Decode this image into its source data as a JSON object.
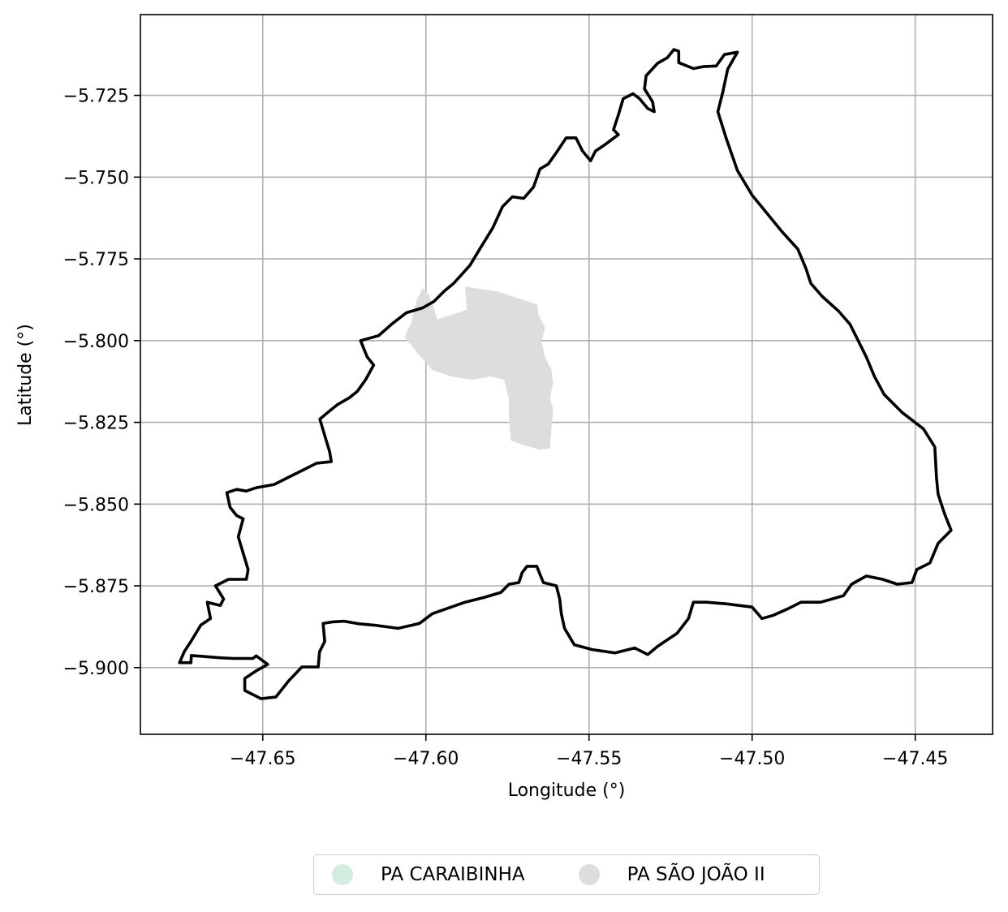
{
  "map": {
    "xlabel": "Longitude (°)",
    "ylabel": "Latitude (°)",
    "xlim": [
      -47.6875,
      -47.4263
    ],
    "ylim": [
      -5.9204,
      -5.7003
    ],
    "xticks": [
      -47.65,
      -47.6,
      -47.55,
      -47.5,
      -47.45
    ],
    "xtick_labels": [
      "−47.65",
      "−47.60",
      "−47.55",
      "−47.50",
      "−47.45"
    ],
    "yticks": [
      -5.725,
      -5.75,
      -5.775,
      -5.8,
      -5.825,
      -5.85,
      -5.875,
      -5.9
    ],
    "ytick_labels": [
      "−5.725",
      "−5.750",
      "−5.775",
      "−5.800",
      "−5.825",
      "−5.850",
      "−5.875",
      "−5.900"
    ],
    "grid": true,
    "legend_position": "bottom-center",
    "boundary_color": "#000000",
    "boundary": [
      [
        -47.6755,
        -5.8985
      ],
      [
        -47.672,
        -5.8985
      ],
      [
        -47.6719,
        -5.8963
      ],
      [
        -47.668,
        -5.8966
      ],
      [
        -47.663,
        -5.897
      ],
      [
        -47.659,
        -5.8972
      ],
      [
        -47.653,
        -5.8972
      ],
      [
        -47.652,
        -5.8964
      ],
      [
        -47.6485,
        -5.899
      ],
      [
        -47.652,
        -5.901
      ],
      [
        -47.6555,
        -5.9033
      ],
      [
        -47.6555,
        -5.907
      ],
      [
        -47.6505,
        -5.9095
      ],
      [
        -47.646,
        -5.909
      ],
      [
        -47.642,
        -5.904
      ],
      [
        -47.638,
        -5.8998
      ],
      [
        -47.633,
        -5.8998
      ],
      [
        -47.6326,
        -5.8952
      ],
      [
        -47.631,
        -5.892
      ],
      [
        -47.6315,
        -5.8865
      ],
      [
        -47.6285,
        -5.886
      ],
      [
        -47.625,
        -5.8858
      ],
      [
        -47.6205,
        -5.8866
      ],
      [
        -47.616,
        -5.887
      ],
      [
        -47.6085,
        -5.888
      ],
      [
        -47.602,
        -5.8865
      ],
      [
        -47.598,
        -5.8835
      ],
      [
        -47.588,
        -5.88
      ],
      [
        -47.582,
        -5.8785
      ],
      [
        -47.577,
        -5.877
      ],
      [
        -47.5745,
        -5.8745
      ],
      [
        -47.5715,
        -5.874
      ],
      [
        -47.5705,
        -5.871
      ],
      [
        -47.569,
        -5.869
      ],
      [
        -47.566,
        -5.869
      ],
      [
        -47.565,
        -5.8715
      ],
      [
        -47.564,
        -5.874
      ],
      [
        -47.56,
        -5.875
      ],
      [
        -47.559,
        -5.879
      ],
      [
        -47.5585,
        -5.8835
      ],
      [
        -47.5575,
        -5.888
      ],
      [
        -47.5545,
        -5.893
      ],
      [
        -47.549,
        -5.8945
      ],
      [
        -47.542,
        -5.8955
      ],
      [
        -47.536,
        -5.894
      ],
      [
        -47.532,
        -5.896
      ],
      [
        -47.529,
        -5.8935
      ],
      [
        -47.523,
        -5.8895
      ],
      [
        -47.5195,
        -5.885
      ],
      [
        -47.518,
        -5.88
      ],
      [
        -47.514,
        -5.88
      ],
      [
        -47.508,
        -5.8805
      ],
      [
        -47.5,
        -5.8815
      ],
      [
        -47.497,
        -5.885
      ],
      [
        -47.4935,
        -5.884
      ],
      [
        -47.489,
        -5.882
      ],
      [
        -47.485,
        -5.88
      ],
      [
        -47.479,
        -5.88
      ],
      [
        -47.472,
        -5.878
      ],
      [
        -47.4695,
        -5.8745
      ],
      [
        -47.465,
        -5.872
      ],
      [
        -47.46,
        -5.873
      ],
      [
        -47.4555,
        -5.8745
      ],
      [
        -47.451,
        -5.874
      ],
      [
        -47.4495,
        -5.87
      ],
      [
        -47.4455,
        -5.868
      ],
      [
        -47.443,
        -5.862
      ],
      [
        -47.439,
        -5.858
      ],
      [
        -47.441,
        -5.853
      ],
      [
        -47.443,
        -5.847
      ],
      [
        -47.4435,
        -5.842
      ],
      [
        -47.444,
        -5.8325
      ],
      [
        -47.4475,
        -5.827
      ],
      [
        -47.454,
        -5.822
      ],
      [
        -47.4595,
        -5.8165
      ],
      [
        -47.4625,
        -5.811
      ],
      [
        -47.465,
        -5.805
      ],
      [
        -47.4675,
        -5.8
      ],
      [
        -47.47,
        -5.795
      ],
      [
        -47.4735,
        -5.791
      ],
      [
        -47.4785,
        -5.7865
      ],
      [
        -47.482,
        -5.7825
      ],
      [
        -47.4835,
        -5.778
      ],
      [
        -47.486,
        -5.772
      ],
      [
        -47.491,
        -5.7665
      ],
      [
        -47.4955,
        -5.761
      ],
      [
        -47.5,
        -5.7555
      ],
      [
        -47.5045,
        -5.748
      ],
      [
        -47.508,
        -5.738
      ],
      [
        -47.5105,
        -5.73
      ],
      [
        -47.509,
        -5.724
      ],
      [
        -47.5075,
        -5.717
      ],
      [
        -47.5045,
        -5.7118
      ],
      [
        -47.5085,
        -5.7125
      ],
      [
        -47.511,
        -5.716
      ],
      [
        -47.515,
        -5.7162
      ],
      [
        -47.518,
        -5.7168
      ],
      [
        -47.5225,
        -5.715
      ],
      [
        -47.5225,
        -5.7115
      ],
      [
        -47.524,
        -5.711
      ],
      [
        -47.526,
        -5.7135
      ],
      [
        -47.529,
        -5.7152
      ],
      [
        -47.5325,
        -5.719
      ],
      [
        -47.533,
        -5.723
      ],
      [
        -47.5305,
        -5.727
      ],
      [
        -47.53,
        -5.73
      ],
      [
        -47.532,
        -5.729
      ],
      [
        -47.5345,
        -5.726
      ],
      [
        -47.5365,
        -5.7245
      ],
      [
        -47.5395,
        -5.726
      ],
      [
        -47.541,
        -5.731
      ],
      [
        -47.5425,
        -5.7355
      ],
      [
        -47.541,
        -5.737
      ],
      [
        -47.545,
        -5.74
      ],
      [
        -47.548,
        -5.742
      ],
      [
        -47.5495,
        -5.745
      ],
      [
        -47.552,
        -5.742
      ],
      [
        -47.554,
        -5.738
      ],
      [
        -47.557,
        -5.738
      ],
      [
        -47.56,
        -5.7425
      ],
      [
        -47.5625,
        -5.746
      ],
      [
        -47.565,
        -5.7475
      ],
      [
        -47.567,
        -5.753
      ],
      [
        -47.57,
        -5.7565
      ],
      [
        -47.5735,
        -5.756
      ],
      [
        -47.5765,
        -5.759
      ],
      [
        -47.5795,
        -5.7655
      ],
      [
        -47.5835,
        -5.772
      ],
      [
        -47.5865,
        -5.777
      ],
      [
        -47.5915,
        -5.7825
      ],
      [
        -47.5945,
        -5.785
      ],
      [
        -47.5975,
        -5.788
      ],
      [
        -47.601,
        -5.79
      ],
      [
        -47.606,
        -5.7915
      ],
      [
        -47.6105,
        -5.795
      ],
      [
        -47.6145,
        -5.7985
      ],
      [
        -47.62,
        -5.8
      ],
      [
        -47.618,
        -5.805
      ],
      [
        -47.616,
        -5.8075
      ],
      [
        -47.6185,
        -5.812
      ],
      [
        -47.621,
        -5.8155
      ],
      [
        -47.6235,
        -5.8175
      ],
      [
        -47.627,
        -5.8195
      ],
      [
        -47.6295,
        -5.8215
      ],
      [
        -47.6325,
        -5.824
      ],
      [
        -47.631,
        -5.829
      ],
      [
        -47.6295,
        -5.834
      ],
      [
        -47.629,
        -5.837
      ],
      [
        -47.6335,
        -5.8375
      ],
      [
        -47.6385,
        -5.84
      ],
      [
        -47.6425,
        -5.842
      ],
      [
        -47.6465,
        -5.844
      ],
      [
        -47.652,
        -5.845
      ],
      [
        -47.655,
        -5.846
      ],
      [
        -47.658,
        -5.8455
      ],
      [
        -47.661,
        -5.8465
      ],
      [
        -47.66,
        -5.851
      ],
      [
        -47.658,
        -5.8535
      ],
      [
        -47.656,
        -5.8545
      ],
      [
        -47.6575,
        -5.86
      ],
      [
        -47.656,
        -5.865
      ],
      [
        -47.6545,
        -5.87
      ],
      [
        -47.655,
        -5.873
      ],
      [
        -47.6605,
        -5.873
      ],
      [
        -47.6645,
        -5.875
      ],
      [
        -47.662,
        -5.879
      ],
      [
        -47.663,
        -5.881
      ],
      [
        -47.667,
        -5.88
      ],
      [
        -47.666,
        -5.885
      ],
      [
        -47.669,
        -5.887
      ],
      [
        -47.672,
        -5.892
      ],
      [
        -47.674,
        -5.895
      ],
      [
        -47.6755,
        -5.8985
      ]
    ]
  },
  "regions": [
    {
      "name": "PA SÃO JOÃO II",
      "color": "#dddddd",
      "polygon": [
        [
          -47.588,
          -5.7835
        ],
        [
          -47.578,
          -5.785
        ],
        [
          -47.5658,
          -5.789
        ],
        [
          -47.5655,
          -5.792
        ],
        [
          -47.5635,
          -5.796
        ],
        [
          -47.5645,
          -5.8005
        ],
        [
          -47.5635,
          -5.805
        ],
        [
          -47.5615,
          -5.809
        ],
        [
          -47.561,
          -5.813
        ],
        [
          -47.562,
          -5.8175
        ],
        [
          -47.561,
          -5.821
        ],
        [
          -47.5615,
          -5.827
        ],
        [
          -47.562,
          -5.833
        ],
        [
          -47.565,
          -5.8333
        ],
        [
          -47.57,
          -5.832
        ],
        [
          -47.574,
          -5.8305
        ],
        [
          -47.5745,
          -5.824
        ],
        [
          -47.5745,
          -5.818
        ],
        [
          -47.576,
          -5.812
        ],
        [
          -47.58,
          -5.811
        ],
        [
          -47.586,
          -5.812
        ],
        [
          -47.592,
          -5.811
        ],
        [
          -47.598,
          -5.809
        ],
        [
          -47.602,
          -5.8045
        ],
        [
          -47.6065,
          -5.799
        ],
        [
          -47.6045,
          -5.7945
        ],
        [
          -47.603,
          -5.788
        ],
        [
          -47.601,
          -5.784
        ],
        [
          -47.599,
          -5.786
        ],
        [
          -47.5965,
          -5.7935
        ],
        [
          -47.59,
          -5.7915
        ],
        [
          -47.5875,
          -5.7905
        ],
        [
          -47.588,
          -5.7835
        ]
      ]
    }
  ],
  "legend": [
    {
      "label": "PA CARAIBINHA",
      "color": "#d2ede0"
    },
    {
      "label": "PA SÃO JOÃO II",
      "color": "#dddddd"
    }
  ]
}
